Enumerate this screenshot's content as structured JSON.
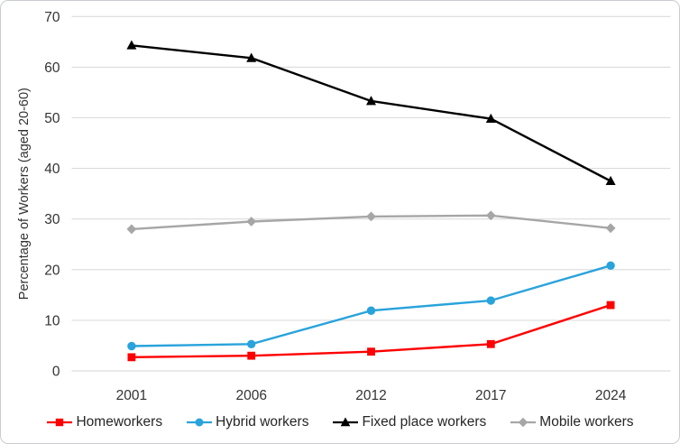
{
  "chart_data": {
    "type": "line",
    "title": "",
    "xlabel": "",
    "ylabel": "Percentage of Workers (aged 20-60)",
    "ylim": [
      0,
      70
    ],
    "yticks": [
      0,
      10,
      20,
      30,
      40,
      50,
      60,
      70
    ],
    "grid": true,
    "legend_position": "bottom",
    "categories": [
      "2001",
      "2006",
      "2012",
      "2017",
      "2024"
    ],
    "series": [
      {
        "name": "Homeworkers",
        "color": "#fe0000",
        "marker": "square",
        "values": [
          2.7,
          3.0,
          3.8,
          5.3,
          13.0
        ]
      },
      {
        "name": "Hybrid workers",
        "color": "#29a3dc",
        "marker": "circle",
        "values": [
          4.9,
          5.3,
          11.9,
          13.9,
          20.8
        ]
      },
      {
        "name": "Fixed place workers",
        "color": "#000000",
        "marker": "triangle",
        "values": [
          64.3,
          61.8,
          53.3,
          49.8,
          37.5
        ]
      },
      {
        "name": "Mobile workers",
        "color": "#a6a6a6",
        "marker": "diamond",
        "values": [
          28.0,
          29.5,
          30.5,
          30.7,
          28.2
        ]
      }
    ]
  },
  "colors": {
    "gridline": "#dcdcdc",
    "axis_line": "#d4d4d4",
    "axis_text": "#333333",
    "background": "#ffffff"
  }
}
